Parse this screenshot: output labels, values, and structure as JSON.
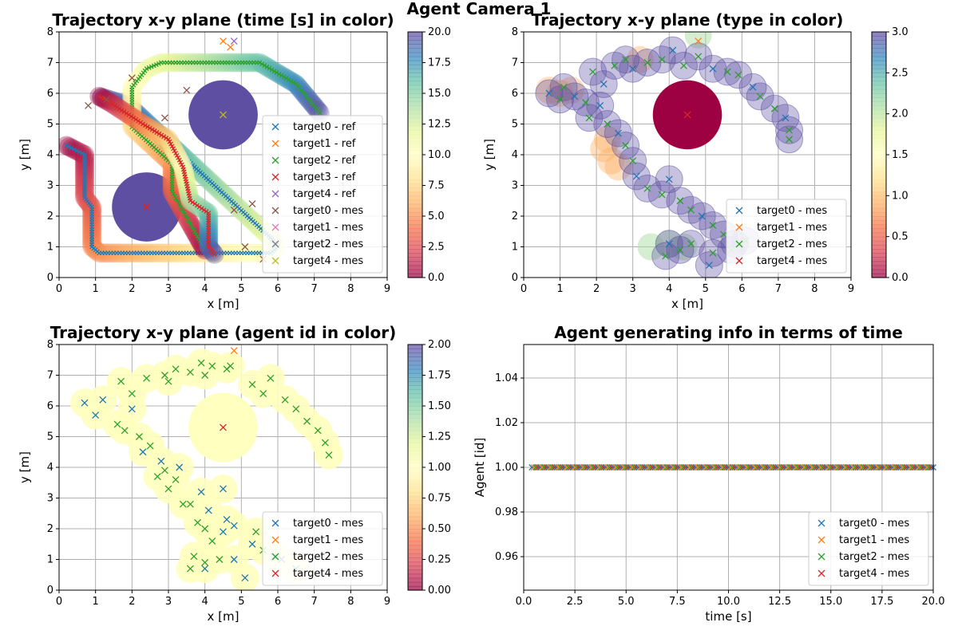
{
  "figure": {
    "suptitle": "Agent Camera 1"
  },
  "colors": {
    "target0": "#1f77b4",
    "target1": "#ff7f0e",
    "target2": "#2ca02c",
    "target3": "#d62728",
    "target4": "#9467bd",
    "target0_mes": "#8c564b",
    "target1_mes": "#e377c2",
    "target2_mes": "#7f7f7f",
    "target4_mes": "#bcbd22",
    "spectral": [
      "#9e0142",
      "#d53e4f",
      "#f46d43",
      "#fdae61",
      "#fee08b",
      "#ffffbf",
      "#e6f598",
      "#abdda4",
      "#66c2a5",
      "#3288bd",
      "#5e4fa2"
    ]
  },
  "chart_data": [
    {
      "type": "scatter",
      "title": "Trajectory x-y plane  (time [s] in color)",
      "xlabel": "x [m]",
      "ylabel": "y [m]",
      "xlim": [
        0,
        9
      ],
      "ylim": [
        0,
        8
      ],
      "xticks": [
        "0",
        "1",
        "2",
        "3",
        "4",
        "5",
        "6",
        "7",
        "8",
        "9"
      ],
      "yticks": [
        "0",
        "1",
        "2",
        "3",
        "4",
        "5",
        "6",
        "7",
        "8"
      ],
      "grid": true,
      "legend_loc": "lower-right",
      "colorbar": {
        "range": [
          0,
          20
        ],
        "ticks": [
          "0.0",
          "2.5",
          "5.0",
          "7.5",
          "10.0",
          "12.5",
          "15.0",
          "17.5",
          "20.0"
        ]
      },
      "legend": [
        "target0 - ref",
        "target1 - ref",
        "target2 - ref",
        "target3 - ref",
        "target4 - ref",
        "target0 - mes",
        "target1 - mes",
        "target2 - mes",
        "target4 - mes"
      ],
      "obstacles": [
        {
          "x": 2.4,
          "y": 2.3,
          "r": 0.95
        },
        {
          "x": 4.5,
          "y": 5.3,
          "r": 0.95
        }
      ],
      "series": [
        {
          "name": "target0 - ref",
          "t_range": [
            0,
            20
          ],
          "path": [
            [
              0.2,
              4.3
            ],
            [
              0.7,
              4.0
            ],
            [
              0.7,
              2.6
            ],
            [
              0.9,
              2.3
            ],
            [
              0.9,
              1.0
            ],
            [
              1.1,
              0.8
            ],
            [
              5.8,
              0.8
            ],
            [
              6.0,
              1.0
            ],
            [
              5.8,
              1.3
            ],
            [
              1.9,
              5.6
            ],
            [
              1.1,
              5.9
            ]
          ]
        },
        {
          "name": "target2 - ref",
          "t_range": [
            0,
            20
          ],
          "path": [
            [
              4.0,
              0.9
            ],
            [
              3.1,
              2.8
            ],
            [
              3.1,
              3.7
            ],
            [
              2.0,
              4.9
            ],
            [
              2.0,
              6.2
            ],
            [
              2.4,
              6.8
            ],
            [
              2.8,
              7.0
            ],
            [
              5.5,
              7.0
            ],
            [
              6.5,
              6.3
            ],
            [
              7.2,
              5.3
            ]
          ]
        },
        {
          "name": "target3 - ref",
          "t_range": [
            0,
            20
          ],
          "path": [
            [
              1.1,
              5.9
            ],
            [
              1.4,
              5.7
            ],
            [
              2.3,
              5.0
            ],
            [
              3.0,
              4.5
            ],
            [
              3.4,
              3.6
            ],
            [
              3.6,
              2.5
            ],
            [
              4.1,
              2.1
            ],
            [
              4.1,
              1.0
            ],
            [
              4.3,
              0.7
            ]
          ]
        }
      ],
      "markers": [
        {
          "name": "target0 - mes",
          "points": [
            [
              1.3,
              5.8
            ],
            [
              2.0,
              6.5
            ],
            [
              2.9,
              5.2
            ],
            [
              4.8,
              2.2
            ],
            [
              5.1,
              1.0
            ],
            [
              5.6,
              0.6
            ],
            [
              5.3,
              2.4
            ],
            [
              3.5,
              6.1
            ],
            [
              0.8,
              5.6
            ]
          ]
        },
        {
          "name": "target1 - ref",
          "points": [
            [
              4.5,
              7.7
            ],
            [
              4.7,
              7.5
            ]
          ]
        },
        {
          "name": "target3 - ref",
          "points": [
            [
              2.4,
              2.3
            ]
          ]
        },
        {
          "name": "target4 - ref",
          "points": [
            [
              4.8,
              7.7
            ]
          ]
        },
        {
          "name": "target4 - mes",
          "points": [
            [
              4.5,
              5.3
            ]
          ]
        }
      ]
    },
    {
      "type": "scatter",
      "title": "Trajectory x-y plane (type in color)",
      "xlabel": "x [m]",
      "ylabel": "y [m]",
      "xlim": [
        0,
        9
      ],
      "ylim": [
        0,
        8
      ],
      "xticks": [
        "0",
        "1",
        "2",
        "3",
        "4",
        "5",
        "6",
        "7",
        "8",
        "9"
      ],
      "yticks": [
        "0",
        "1",
        "2",
        "3",
        "4",
        "5",
        "6",
        "7",
        "8"
      ],
      "grid": true,
      "legend_loc": "lower-right",
      "colorbar": {
        "range": [
          0,
          3
        ],
        "ticks": [
          "0.0",
          "0.5",
          "1.0",
          "1.5",
          "2.0",
          "2.5",
          "3.0"
        ]
      },
      "legend": [
        "target0 - mes",
        "target1 - mes",
        "target2 - mes",
        "target4 - mes"
      ],
      "obstacle": {
        "x": 4.5,
        "y": 5.3,
        "r": 0.95
      },
      "points": [
        [
          0.7,
          6.0
        ],
        [
          1.0,
          5.8
        ],
        [
          1.1,
          6.2
        ],
        [
          1.4,
          5.9
        ],
        [
          1.7,
          5.7
        ],
        [
          1.8,
          5.2
        ],
        [
          2.1,
          5.6
        ],
        [
          2.3,
          5.0
        ],
        [
          1.9,
          6.7
        ],
        [
          2.2,
          6.3
        ],
        [
          2.5,
          6.9
        ],
        [
          2.8,
          7.1
        ],
        [
          3.0,
          6.8
        ],
        [
          3.4,
          7.0
        ],
        [
          3.8,
          7.1
        ],
        [
          4.1,
          7.4
        ],
        [
          4.4,
          6.9
        ],
        [
          4.8,
          7.2
        ],
        [
          5.2,
          6.8
        ],
        [
          5.6,
          6.7
        ],
        [
          5.9,
          6.6
        ],
        [
          6.3,
          6.2
        ],
        [
          6.5,
          5.9
        ],
        [
          6.9,
          5.5
        ],
        [
          7.2,
          5.2
        ],
        [
          7.3,
          4.8
        ],
        [
          7.3,
          4.5
        ],
        [
          2.6,
          4.7
        ],
        [
          2.8,
          4.3
        ],
        [
          3.0,
          3.8
        ],
        [
          3.1,
          3.3
        ],
        [
          3.4,
          2.9
        ],
        [
          3.8,
          2.7
        ],
        [
          4.0,
          3.2
        ],
        [
          4.3,
          2.5
        ],
        [
          4.6,
          2.2
        ],
        [
          4.9,
          2.0
        ],
        [
          5.2,
          1.7
        ],
        [
          5.5,
          1.4
        ],
        [
          5.8,
          1.1
        ],
        [
          5.2,
          0.8
        ],
        [
          4.3,
          0.9
        ],
        [
          4.0,
          1.1
        ],
        [
          3.9,
          0.7
        ],
        [
          4.6,
          1.1
        ],
        [
          5.1,
          0.4
        ],
        [
          5.7,
          0.9
        ],
        [
          6.1,
          1.2
        ]
      ],
      "orange_points": [
        [
          0.7,
          6.1
        ],
        [
          1.0,
          6.0
        ],
        [
          1.3,
          6.1
        ],
        [
          2.4,
          3.8
        ],
        [
          2.6,
          3.6
        ],
        [
          3.2,
          7.1
        ],
        [
          2.3,
          4.5
        ],
        [
          2.2,
          4.2
        ]
      ],
      "green_points": [
        [
          4.0,
          1.1
        ],
        [
          4.4,
          1.0
        ],
        [
          4.8,
          7.9
        ],
        [
          3.5,
          1.0
        ]
      ],
      "markers": [
        {
          "name": "target1 - mes",
          "points": [
            [
              4.8,
              7.7
            ]
          ]
        },
        {
          "name": "target4 - mes",
          "points": [
            [
              4.5,
              5.3
            ]
          ]
        }
      ]
    },
    {
      "type": "scatter",
      "title": "Trajectory x-y plane (agent id in color)",
      "xlabel": "x [m]",
      "ylabel": "y [m]",
      "xlim": [
        0,
        9
      ],
      "ylim": [
        0,
        8
      ],
      "xticks": [
        "0",
        "1",
        "2",
        "3",
        "4",
        "5",
        "6",
        "7",
        "8",
        "9"
      ],
      "yticks": [
        "0",
        "1",
        "2",
        "3",
        "4",
        "5",
        "6",
        "7",
        "8"
      ],
      "grid": true,
      "legend_loc": "lower-right",
      "colorbar": {
        "range": [
          0,
          2
        ],
        "ticks": [
          "0.00",
          "0.25",
          "0.50",
          "0.75",
          "1.00",
          "1.25",
          "1.50",
          "1.75",
          "2.00"
        ]
      },
      "legend": [
        "target0 - mes",
        "target1 - mes",
        "target2 - mes",
        "target4 - mes"
      ],
      "obstacle": {
        "x": 4.5,
        "y": 5.3,
        "r": 0.95
      },
      "blue_points": [
        [
          0.7,
          6.1
        ],
        [
          1.0,
          5.7
        ],
        [
          1.2,
          6.2
        ],
        [
          2.0,
          5.9
        ],
        [
          2.3,
          4.5
        ],
        [
          2.8,
          4.2
        ],
        [
          3.3,
          4.0
        ],
        [
          3.9,
          3.2
        ],
        [
          4.1,
          2.6
        ],
        [
          4.5,
          3.3
        ],
        [
          4.6,
          2.3
        ],
        [
          4.8,
          2.1
        ],
        [
          4.5,
          1.9
        ],
        [
          5.3,
          1.5
        ],
        [
          5.9,
          1.1
        ],
        [
          4.8,
          1.0
        ],
        [
          5.1,
          0.4
        ],
        [
          6.1,
          1.0
        ],
        [
          6.5,
          0.7
        ],
        [
          4.0,
          0.7
        ]
      ],
      "green_points": [
        [
          1.6,
          5.4
        ],
        [
          1.8,
          5.2
        ],
        [
          2.0,
          6.4
        ],
        [
          2.2,
          5.0
        ],
        [
          1.7,
          6.8
        ],
        [
          2.4,
          6.9
        ],
        [
          2.9,
          7.0
        ],
        [
          3.0,
          6.8
        ],
        [
          3.2,
          7.2
        ],
        [
          3.6,
          7.1
        ],
        [
          3.9,
          7.4
        ],
        [
          4.0,
          7.0
        ],
        [
          4.2,
          7.3
        ],
        [
          4.6,
          7.2
        ],
        [
          4.7,
          7.3
        ],
        [
          5.3,
          6.7
        ],
        [
          5.6,
          6.4
        ],
        [
          5.8,
          6.9
        ],
        [
          6.2,
          6.2
        ],
        [
          6.5,
          5.9
        ],
        [
          6.8,
          5.5
        ],
        [
          7.1,
          5.2
        ],
        [
          7.3,
          4.8
        ],
        [
          7.4,
          4.4
        ],
        [
          2.5,
          4.7
        ],
        [
          2.7,
          3.7
        ],
        [
          2.9,
          3.9
        ],
        [
          3.0,
          3.3
        ],
        [
          3.2,
          3.6
        ],
        [
          3.4,
          2.8
        ],
        [
          3.6,
          2.8
        ],
        [
          3.8,
          2.2
        ],
        [
          4.0,
          2.0
        ],
        [
          4.2,
          1.6
        ],
        [
          3.7,
          1.1
        ],
        [
          4.0,
          0.9
        ],
        [
          3.6,
          0.7
        ],
        [
          4.4,
          1.0
        ],
        [
          5.6,
          1.3
        ],
        [
          5.4,
          1.9
        ]
      ],
      "markers": [
        {
          "name": "target1 - mes",
          "points": [
            [
              4.8,
              7.8
            ]
          ]
        },
        {
          "name": "target4 - mes",
          "points": [
            [
              4.5,
              5.3
            ]
          ]
        }
      ]
    },
    {
      "type": "scatter",
      "title": "Agent generating info in terms of time",
      "xlabel": "time [s]",
      "ylabel": "Agent [id]",
      "xlim": [
        0,
        20
      ],
      "ylim": [
        0.945,
        1.055
      ],
      "xticks": [
        "0.0",
        "2.5",
        "5.0",
        "7.5",
        "10.0",
        "12.5",
        "15.0",
        "17.5",
        "20.0"
      ],
      "yticks": [
        "0.96",
        "0.98",
        "1.00",
        "1.02",
        "1.04"
      ],
      "ytick_values": [
        0.96,
        0.98,
        1.0,
        1.02,
        1.04
      ],
      "grid": true,
      "legend_loc": "lower-right",
      "legend": [
        "target0 - mes",
        "target1 - mes",
        "target2 - mes",
        "target4 - mes"
      ],
      "y_value": 1.0,
      "t_start": 0.4,
      "t_end": 20.0,
      "t_step": 0.1
    }
  ]
}
